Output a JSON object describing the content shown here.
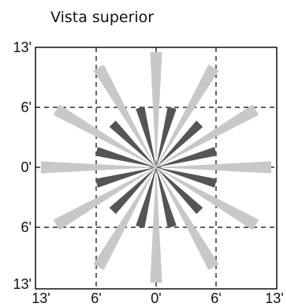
{
  "title": "Vista superior",
  "y_tick_labels": [
    "13'",
    "6'",
    "0'",
    "6'",
    "13'"
  ],
  "x_tick_labels": [
    "13'",
    "6'",
    "0'",
    "6'",
    "13'"
  ],
  "chart_data": {
    "type": "polar-beam-pattern",
    "x_range_ft": [
      -13,
      13
    ],
    "y_range_ft": [
      -13,
      13
    ],
    "grid": "dashed at ±6.5 and 0",
    "long_beams": {
      "color": "#c8c8c8",
      "angles_deg": [
        0,
        30,
        60,
        90,
        120,
        150,
        180,
        210,
        240,
        270,
        300,
        330
      ]
    },
    "short_beams": {
      "color": "#555555",
      "angles_deg": [
        15,
        45,
        75,
        105,
        135,
        165,
        195,
        225,
        255,
        285,
        315,
        345
      ]
    }
  }
}
